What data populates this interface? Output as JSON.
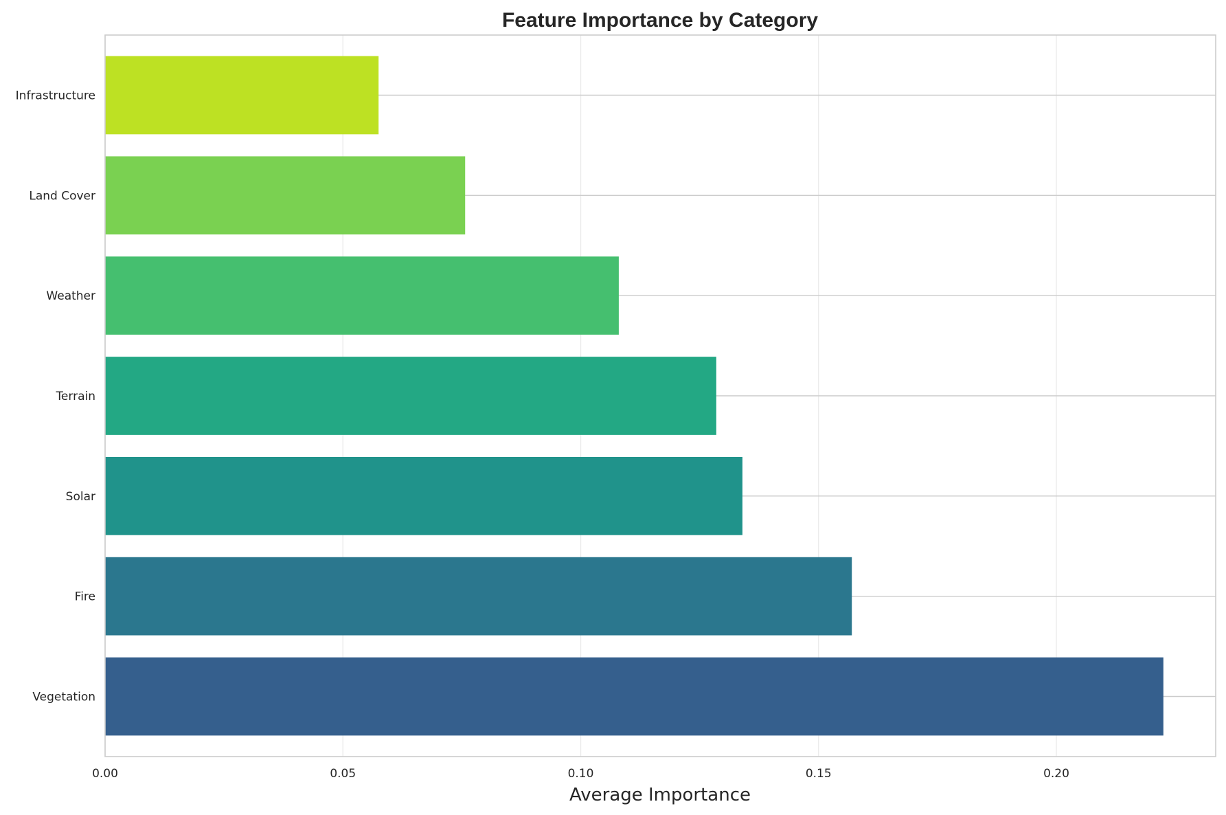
{
  "chart_data": {
    "type": "bar",
    "orientation": "horizontal",
    "title": "Feature Importance by Category",
    "xlabel": "Average Importance",
    "ylabel": "",
    "categories": [
      "Vegetation",
      "Fire",
      "Solar",
      "Terrain",
      "Weather",
      "Land Cover",
      "Infrastructure"
    ],
    "values": [
      0.2225,
      0.157,
      0.134,
      0.1285,
      0.108,
      0.0757,
      0.0575
    ],
    "colors": [
      "#355f8d",
      "#2b778e",
      "#20938b",
      "#23a884",
      "#45bf6f",
      "#7ad151",
      "#bde123"
    ],
    "xlim": [
      0,
      0.2335
    ],
    "xticks": [
      "0.00",
      "0.05",
      "0.10",
      "0.15",
      "0.20"
    ],
    "xtick_values": [
      0,
      0.05,
      0.1,
      0.15,
      0.2
    ],
    "grid": true,
    "legend": "none"
  }
}
